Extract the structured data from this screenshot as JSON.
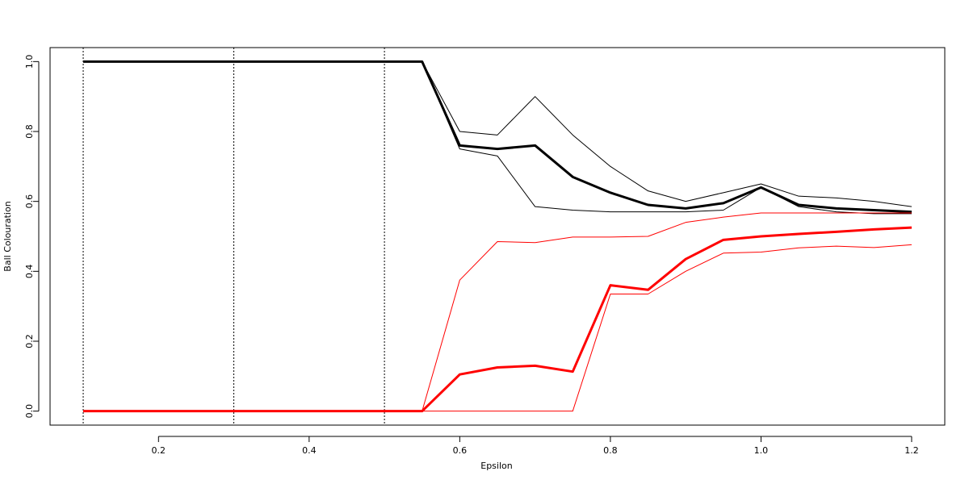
{
  "chart_data": {
    "type": "line",
    "x_label": "Epsilon",
    "y_label": "Ball Colouration",
    "x": [
      0.1,
      0.15,
      0.2,
      0.25,
      0.3,
      0.35,
      0.4,
      0.45,
      0.5,
      0.55,
      0.6,
      0.65,
      0.7,
      0.75,
      0.8,
      0.85,
      0.9,
      0.95,
      1.0,
      1.05,
      1.1,
      1.15,
      1.2
    ],
    "series": [
      {
        "color": "#000000",
        "lwd": 1,
        "values": [
          1,
          1,
          1,
          1,
          1,
          1,
          1,
          1,
          1,
          1,
          0.8,
          0.79,
          0.9,
          0.79,
          0.7,
          0.63,
          0.6,
          0.625,
          0.65,
          0.615,
          0.61,
          0.6,
          0.585
        ]
      },
      {
        "color": "#000000",
        "lwd": 1,
        "values": [
          1,
          1,
          1,
          1,
          1,
          1,
          1,
          1,
          1,
          1,
          0.75,
          0.73,
          0.585,
          0.575,
          0.57,
          0.57,
          0.57,
          0.575,
          0.64,
          0.585,
          0.57,
          0.565,
          0.565
        ]
      },
      {
        "color": "#000000",
        "lwd": 3,
        "values": [
          1,
          1,
          1,
          1,
          1,
          1,
          1,
          1,
          1,
          1,
          0.76,
          0.75,
          0.76,
          0.67,
          0.625,
          0.59,
          0.58,
          0.595,
          0.64,
          0.59,
          0.58,
          0.575,
          0.57
        ]
      },
      {
        "color": "#ff0000",
        "lwd": 1,
        "values": [
          0,
          0,
          0,
          0,
          0,
          0,
          0,
          0,
          0,
          0,
          0.375,
          0.485,
          0.482,
          0.498,
          0.498,
          0.5,
          0.54,
          0.555,
          0.567,
          0.567,
          0.567,
          0.567,
          0.567
        ]
      },
      {
        "color": "#ff0000",
        "lwd": 1,
        "values": [
          0,
          0,
          0,
          0,
          0,
          0,
          0,
          0,
          0,
          0,
          0,
          0,
          0,
          0,
          0.335,
          0.335,
          0.4,
          0.452,
          0.455,
          0.467,
          0.472,
          0.468,
          0.476
        ]
      },
      {
        "color": "#ff0000",
        "lwd": 3,
        "values": [
          0,
          0,
          0,
          0,
          0,
          0,
          0,
          0,
          0,
          0,
          0.105,
          0.125,
          0.13,
          0.113,
          0.36,
          0.347,
          0.435,
          0.49,
          0.5,
          0.507,
          0.513,
          0.52,
          0.525
        ]
      }
    ],
    "vlines": [
      0.1,
      0.3,
      0.5
    ],
    "xlim": [
      0.056,
      1.244
    ],
    "ylim": [
      -0.04,
      1.04
    ],
    "xticks": [
      0.2,
      0.4,
      0.6,
      0.8,
      {
        "value": 1.0,
        "label": "1.0"
      },
      1.2
    ],
    "yticks": [
      {
        "value": 0.0,
        "label": "0.0"
      },
      0.2,
      0.4,
      0.6,
      0.8,
      {
        "value": 1.0,
        "label": "1.0"
      }
    ]
  }
}
